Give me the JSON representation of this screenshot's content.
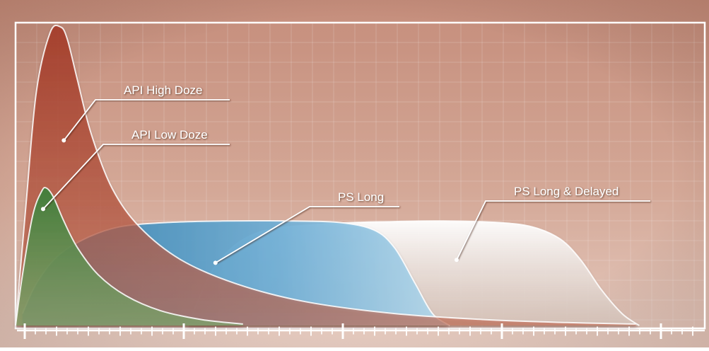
{
  "chart_data": {
    "type": "area",
    "title": "",
    "xlabel": "",
    "ylabel": "",
    "grid": true,
    "x_range": [
      0,
      100
    ],
    "y_range": [
      0,
      100
    ],
    "series": [
      {
        "name": "PS Long & Delayed",
        "color": "#f2ebe6",
        "x": [
          25,
          29,
          35,
          45,
          55,
          62,
          70,
          75,
          79,
          82,
          85,
          88,
          90.5
        ],
        "y": [
          0,
          20,
          31,
          34,
          34.8,
          35,
          34.5,
          33,
          29,
          22,
          12,
          4,
          0
        ]
      },
      {
        "name": "PS Long",
        "color": "#8cc0dc",
        "x": [
          1,
          3,
          6,
          10,
          15,
          22,
          30,
          40,
          47,
          52,
          55,
          58,
          60.5,
          63
        ],
        "y": [
          4,
          14,
          23,
          29,
          33,
          34.5,
          35,
          35,
          34.5,
          32,
          26,
          14,
          4,
          0
        ]
      },
      {
        "name": "API High Doze",
        "color": "#b8513e",
        "x": [
          0,
          1.5,
          3,
          5,
          6.5,
          7.5,
          9,
          11,
          14,
          18,
          24,
          32,
          42,
          55,
          68,
          80,
          90
        ],
        "y": [
          0,
          40,
          78,
          98,
          100,
          96,
          82,
          64,
          46,
          33,
          22,
          14,
          8,
          4,
          2,
          1,
          0.5
        ]
      },
      {
        "name": "API Low Doze",
        "color": "#4f8c46",
        "x": [
          0,
          1,
          2.5,
          3.8,
          4.5,
          5.5,
          7,
          9,
          12,
          16,
          21,
          27,
          33
        ],
        "y": [
          0,
          17,
          37,
          45,
          46,
          43,
          35,
          26,
          17,
          10,
          5,
          2,
          0.5
        ]
      }
    ],
    "annotations": [
      {
        "text": "API High Doze",
        "series": "API High Doze",
        "point": [
          7,
          62
        ]
      },
      {
        "text": "API Low Doze",
        "series": "API Low Doze",
        "point": [
          4,
          39
        ]
      },
      {
        "text": "PS Long",
        "series": "PS Long",
        "point": [
          29,
          21
        ]
      },
      {
        "text": "PS Long & Delayed",
        "series": "PS Long & Delayed",
        "point": [
          64,
          22
        ]
      }
    ]
  }
}
